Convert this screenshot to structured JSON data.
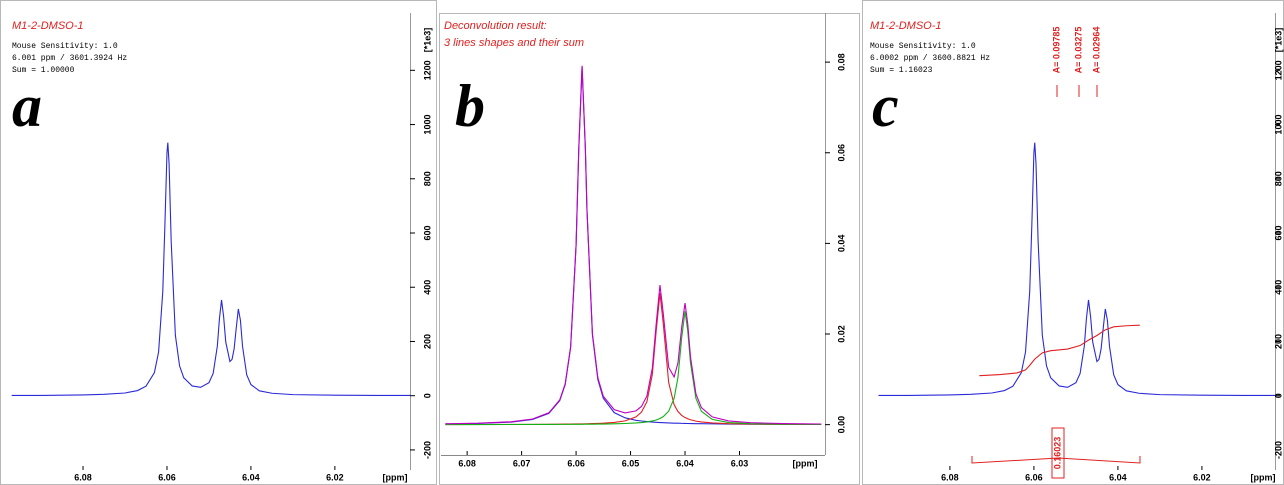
{
  "chart_data": [
    {
      "type": "line",
      "title": "M1-2-DMSO-1",
      "info": [
        "Mouse Sensitivity: 1.0",
        "6.001 ppm / 3601.3924 Hz",
        "Sum = 1.00000"
      ],
      "panel_label": "a",
      "xlabel": "[ppm]",
      "ylabel": "[*1e3]",
      "x": [
        6.097,
        6.09,
        6.08,
        6.075,
        6.07,
        6.067,
        6.065,
        6.063,
        6.062,
        6.061,
        6.0605,
        6.06,
        6.0598,
        6.0595,
        6.059,
        6.058,
        6.057,
        6.056,
        6.054,
        6.052,
        6.05,
        6.049,
        6.048,
        6.0475,
        6.047,
        6.0465,
        6.046,
        6.045,
        6.0445,
        6.044,
        6.0435,
        6.043,
        6.0425,
        6.042,
        6.041,
        6.04,
        6.038,
        6.035,
        6.03,
        6.02,
        6.01,
        6.002
      ],
      "series": [
        {
          "color": "#2a2ad8",
          "values": [
            1,
            1,
            3,
            5,
            10,
            19,
            35,
            85,
            161,
            384,
            627,
            897,
            933,
            856,
            570,
            223,
            110,
            66,
            36,
            31,
            48,
            82,
            183,
            284,
            353,
            291,
            198,
            126,
            134,
            173,
            249,
            320,
            278,
            182,
            77,
            41,
            18,
            9,
            4,
            2,
            1,
            1
          ]
        }
      ],
      "xlim": [
        6.0974,
        6.0021
      ],
      "ylim": [
        -274,
        1404
      ],
      "xticks": [
        6.08,
        6.06,
        6.04,
        6.02
      ],
      "yticks": [
        -200,
        0,
        200,
        400,
        600,
        800,
        1000,
        1200
      ]
    },
    {
      "type": "line",
      "title": "Deconvolution result:",
      "subtitle": "3 lines shapes and their sum",
      "panel_label": "b",
      "xlabel": "[ppm]",
      "x": [
        6.084,
        6.078,
        6.072,
        6.068,
        6.065,
        6.063,
        6.062,
        6.061,
        6.06,
        6.0595,
        6.0589,
        6.0583,
        6.058,
        6.057,
        6.056,
        6.055,
        6.053,
        6.051,
        6.049,
        6.048,
        6.047,
        6.046,
        6.0453,
        6.0446,
        6.044,
        6.043,
        6.042,
        6.0413,
        6.0406,
        6.04,
        6.0395,
        6.039,
        6.038,
        6.037,
        6.035,
        6.032,
        6.028,
        6.022,
        6.015
      ],
      "series": [
        {
          "color": "#2a2ad8",
          "values": [
            0.00015,
            0.00026,
            0.00055,
            0.00114,
            0.00248,
            0.0053,
            0.00884,
            0.017,
            0.0395,
            0.0609,
            0.079,
            0.0609,
            0.0473,
            0.0198,
            0.00994,
            0.00582,
            0.00265,
            0.0015,
            0.00096,
            0.0008,
            0.00067,
            0.00057,
            0.00051,
            0.00046,
            0.00043,
            0.00038,
            0.00033,
            0.00031,
            0.00028,
            0.00027,
            0.00025,
            0.00024,
            0.00022,
            0.0002,
            0.00017,
            0.00013,
            0.0001,
            7e-05,
            5e-05
          ]
        },
        {
          "color": "#e02020",
          "values": [
            2e-05,
            3e-05,
            5e-05,
            6e-05,
            8e-05,
            0.0001,
            0.00012,
            0.00013,
            0.00015,
            0.00016,
            0.00017,
            0.00019,
            0.00019,
            0.00023,
            0.00027,
            0.00032,
            0.00049,
            0.00083,
            0.00171,
            0.00275,
            0.00503,
            0.0111,
            0.0206,
            0.029,
            0.0224,
            0.0093,
            0.0044,
            0.0029,
            0.00204,
            0.00157,
            0.00129,
            0.00108,
            0.00078,
            0.0006,
            0.00038,
            0.00022,
            0.00013,
            7e-05,
            4e-05
          ]
        },
        {
          "color": "#12b012",
          "values": [
            2e-05,
            2e-05,
            3e-05,
            4e-05,
            5e-05,
            6e-05,
            6e-05,
            7e-05,
            8e-05,
            8e-05,
            8e-05,
            9e-05,
            9e-05,
            0.0001,
            0.00012,
            0.00013,
            0.00018,
            0.00025,
            0.00037,
            0.00046,
            0.0006,
            0.00081,
            0.00103,
            0.00135,
            0.00176,
            0.00296,
            0.0058,
            0.0104,
            0.0193,
            0.025,
            0.0207,
            0.0137,
            0.0058,
            0.00296,
            0.00116,
            0.00046,
            0.00021,
            9e-05,
            5e-05
          ]
        },
        {
          "color": "#c000c0",
          "values": [
            0.00019,
            0.00031,
            0.00063,
            0.00124,
            0.00261,
            0.00546,
            0.00902,
            0.0172,
            0.0397,
            0.0611,
            0.0792,
            0.0612,
            0.0476,
            0.0201,
            0.01033,
            0.00627,
            0.00332,
            0.00258,
            0.00304,
            0.00401,
            0.0063,
            0.01248,
            0.02214,
            0.03081,
            0.02459,
            0.01264,
            0.01053,
            0.01361,
            0.02162,
            0.02684,
            0.02224,
            0.01502,
            0.0068,
            0.00376,
            0.00171,
            0.00081,
            0.00044,
            0.00023,
            0.00014
          ]
        }
      ],
      "xlim": [
        6.0848,
        6.0143
      ],
      "ylim": [
        -0.0067,
        0.0904
      ],
      "xticks": [
        6.08,
        6.07,
        6.06,
        6.05,
        6.04,
        6.03
      ],
      "yticks": [
        {
          "value": 0,
          "label": "0.00"
        },
        0.02,
        0.04,
        0.06,
        0.08
      ]
    },
    {
      "type": "line",
      "title": "M1-2-DMSO-1",
      "info": [
        "Mouse Sensitivity: 1.0",
        "6.0002 ppm / 3600.8821 Hz",
        "Sum = 1.16023"
      ],
      "panel_label": "c",
      "xlabel": "[ppm]",
      "ylabel": "[*1e3]",
      "x": [
        6.097,
        6.09,
        6.08,
        6.075,
        6.07,
        6.067,
        6.065,
        6.063,
        6.062,
        6.061,
        6.0605,
        6.06,
        6.0598,
        6.0595,
        6.059,
        6.058,
        6.057,
        6.056,
        6.054,
        6.052,
        6.05,
        6.049,
        6.048,
        6.0475,
        6.047,
        6.0465,
        6.046,
        6.045,
        6.0445,
        6.044,
        6.0435,
        6.043,
        6.0425,
        6.042,
        6.041,
        6.04,
        6.038,
        6.035,
        6.03,
        6.02,
        6.01,
        6.002
      ],
      "series": [
        {
          "color": "#2a2ad8",
          "values": [
            1,
            1,
            3,
            5,
            10,
            19,
            35,
            85,
            161,
            384,
            627,
            897,
            933,
            856,
            570,
            223,
            110,
            66,
            36,
            31,
            48,
            82,
            183,
            284,
            353,
            291,
            198,
            126,
            134,
            173,
            249,
            320,
            278,
            182,
            77,
            41,
            18,
            9,
            4,
            2,
            1,
            1
          ]
        },
        {
          "color": "#e02020",
          "x": [
            6.073,
            6.068,
            6.064,
            6.062,
            6.061,
            6.0598,
            6.058,
            6.056,
            6.052,
            6.049,
            6.047,
            6.045,
            6.043,
            6.041,
            6.038,
            6.0348
          ],
          "values": [
            74,
            78,
            84,
            95,
            112,
            135,
            158,
            166,
            172,
            185,
            205,
            222,
            243,
            254,
            258,
            260
          ]
        }
      ],
      "annotations": [
        "A= 0.09785",
        "A= 0.03275",
        "A= 0.02964",
        "0.16023"
      ],
      "xlim": [
        6.0995,
        6.0026
      ],
      "ylim": [
        -274,
        1404
      ],
      "xticks": [
        6.08,
        6.06,
        6.04,
        6.02
      ],
      "yticks": [
        -200,
        0,
        200,
        400,
        600,
        800,
        1000,
        1200
      ]
    }
  ]
}
